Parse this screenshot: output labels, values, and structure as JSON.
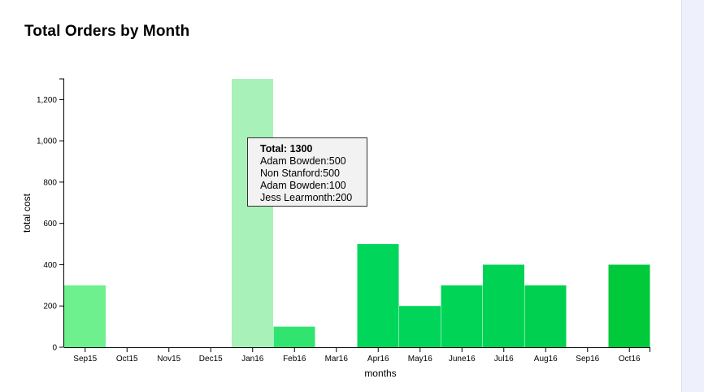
{
  "page": {
    "title": "Total Orders by Month"
  },
  "chart_data": {
    "type": "bar",
    "title": "Total Orders by Month",
    "xlabel": "months",
    "ylabel": "total cost",
    "categories": [
      "Sep15",
      "Oct15",
      "Nov15",
      "Dec15",
      "Jan16",
      "Feb16",
      "Mar16",
      "Apr16",
      "May16",
      "June16",
      "Jul16",
      "Aug16",
      "Sep16",
      "Oct16"
    ],
    "values": [
      300,
      0,
      0,
      0,
      1300,
      100,
      0,
      500,
      200,
      300,
      400,
      300,
      0,
      400
    ],
    "ylim": [
      0,
      1300
    ],
    "yticks": [
      0,
      200,
      400,
      600,
      800,
      1000,
      1200
    ],
    "ytick_labels": [
      "0",
      "200",
      "400",
      "600",
      "800",
      "1,000",
      "1,200"
    ],
    "grid": false,
    "bar_colors": [
      "#6df08d",
      "#59ef7e",
      "#46ed6f",
      "#33ea61",
      "#a8f1b8",
      "#31e470",
      "#1ee060",
      "#00d65a",
      "#00d559",
      "#00d456",
      "#00d253",
      "#00d04f",
      "#00cd49",
      "#00c93a"
    ],
    "highlighted_category": "Jan16"
  },
  "tooltip": {
    "total_label": "Total: 1300",
    "lines": [
      "Adam Bowden:500",
      "Non Stanford:500",
      "Adam Bowden:100",
      "Jess Learmonth:200"
    ]
  }
}
